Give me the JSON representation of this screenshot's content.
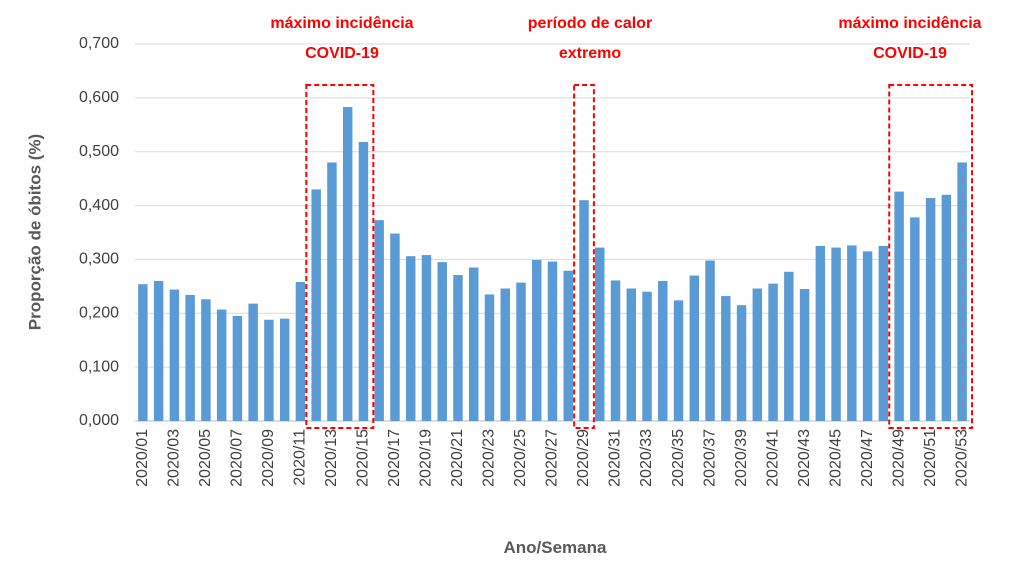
{
  "chart_data": {
    "type": "bar",
    "categories": [
      "2020/01",
      null,
      "2020/03",
      null,
      "2020/05",
      null,
      "2020/07",
      null,
      "2020/09",
      null,
      "2020/11",
      null,
      "2020/13",
      null,
      "2020/15",
      null,
      "2020/17",
      null,
      "2020/19",
      null,
      "2020/21",
      null,
      "2020/23",
      null,
      "2020/25",
      null,
      "2020/27",
      null,
      "2020/29",
      null,
      "2020/31",
      null,
      "2020/33",
      null,
      "2020/35",
      null,
      "2020/37",
      null,
      "2020/39",
      null,
      "2020/41",
      null,
      "2020/43",
      null,
      "2020/45",
      null,
      "2020/47",
      null,
      "2020/49",
      null,
      "2020/51",
      null,
      "2020/53"
    ],
    "values": [
      0.254,
      0.26,
      0.244,
      0.234,
      0.226,
      0.207,
      0.195,
      0.218,
      0.188,
      0.19,
      0.258,
      0.43,
      0.48,
      0.583,
      0.518,
      0.373,
      0.348,
      0.306,
      0.308,
      0.295,
      0.271,
      0.285,
      0.235,
      0.246,
      0.257,
      0.299,
      0.296,
      0.279,
      0.41,
      0.322,
      0.261,
      0.246,
      0.24,
      0.26,
      0.224,
      0.27,
      0.298,
      0.232,
      0.215,
      0.246,
      0.255,
      0.277,
      0.245,
      0.325,
      0.322,
      0.326,
      0.315,
      0.325,
      0.426,
      0.378,
      0.414,
      0.42,
      0.48
    ],
    "color": "#5b9bd5",
    "ylim": [
      0,
      0.7
    ],
    "yticks": [
      {
        "value": 0,
        "label": "0,000"
      },
      {
        "value": 0.1,
        "label": "0,100"
      },
      {
        "value": 0.2,
        "label": "0,200"
      },
      {
        "value": 0.3,
        "label": "0,300"
      },
      {
        "value": 0.4,
        "label": "0,400"
      },
      {
        "value": 0.5,
        "label": "0,500"
      },
      {
        "value": 0.6,
        "label": "0,600"
      },
      {
        "value": 0.7,
        "label": "0,700"
      }
    ],
    "grid": true,
    "x_label": "Ano/Semana",
    "y_label": "Proporção de óbitos (%)",
    "annotations": [
      {
        "lines": [
          "máximo incidência",
          "COVID-19"
        ]
      },
      {
        "lines": [
          "período de calor",
          "extremo"
        ]
      },
      {
        "lines": [
          "máximo incidência",
          "COVID-19"
        ]
      }
    ]
  }
}
